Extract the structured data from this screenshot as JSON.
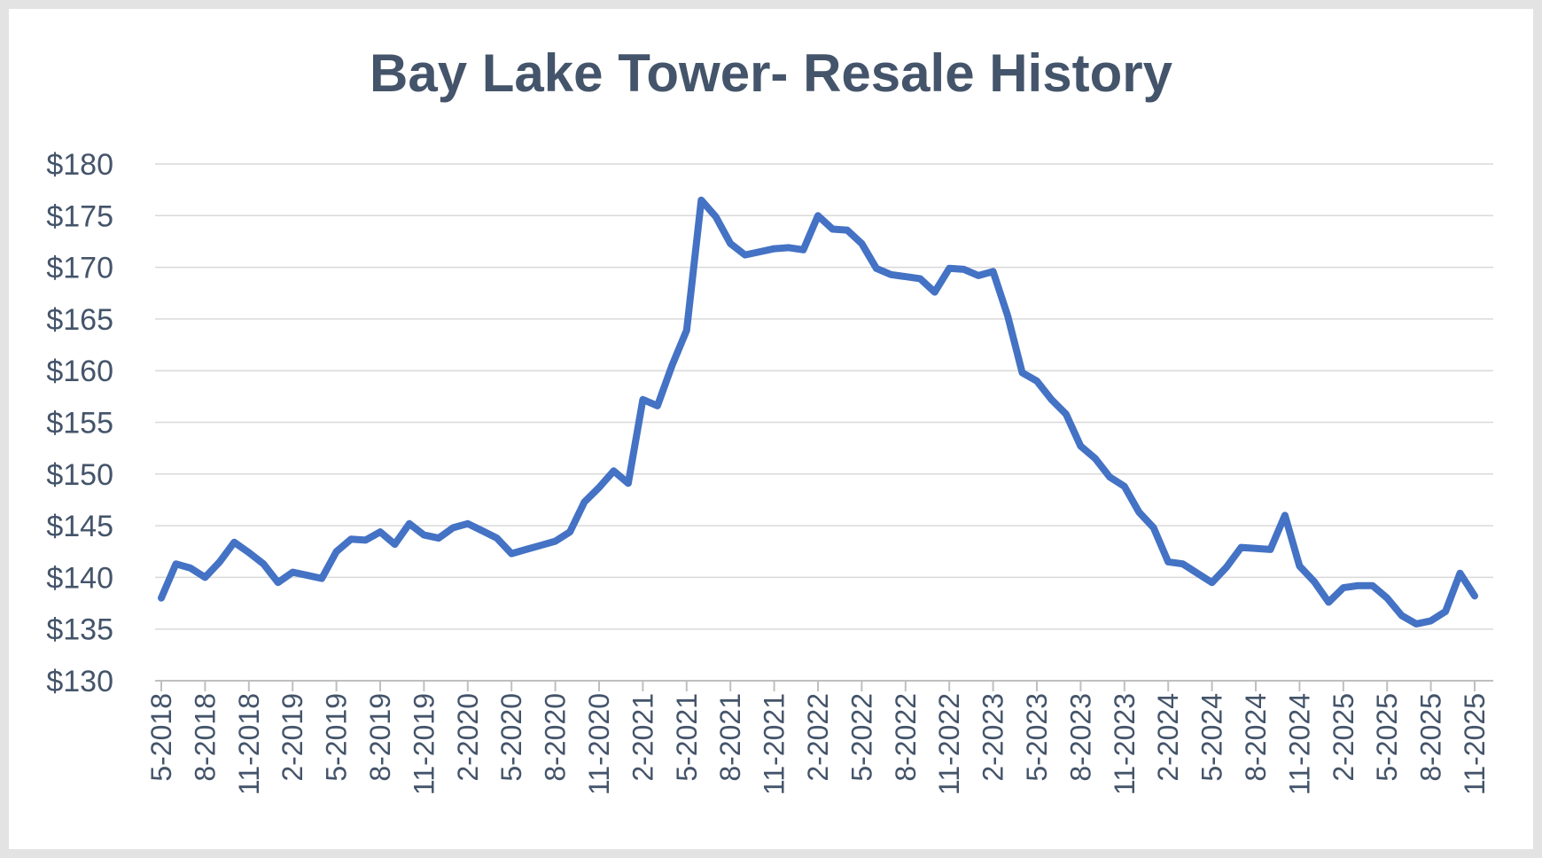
{
  "chart_data": {
    "type": "line",
    "title": "Bay Lake Tower- Resale History",
    "xlabel": "",
    "ylabel": "",
    "ylim": [
      130,
      180
    ],
    "y_ticks": [
      130,
      135,
      140,
      145,
      150,
      155,
      160,
      165,
      170,
      175,
      180
    ],
    "y_tick_prefix": "$",
    "x_tick_labels": [
      "5-2018",
      "8-2018",
      "11-2018",
      "2-2019",
      "5-2019",
      "8-2019",
      "11-2019",
      "2-2020",
      "5-2020",
      "8-2020",
      "11-2020",
      "2-2021",
      "5-2021",
      "8-2021",
      "11-2021",
      "2-2022",
      "5-2022",
      "8-2022",
      "11-2022",
      "2-2023",
      "5-2023",
      "8-2023",
      "11-2023",
      "2-2024",
      "5-2024",
      "8-2024",
      "11-2024",
      "2-2025",
      "5-2025",
      "8-2025",
      "11-2025"
    ],
    "x_tick_every": 3,
    "grid": true,
    "legend": "none",
    "line_color": "#4472c4",
    "series": [
      {
        "values": [
          138.0,
          141.3,
          140.9,
          140.0,
          141.5,
          143.4,
          142.4,
          141.3,
          139.5,
          140.5,
          140.2,
          139.9,
          142.5,
          143.7,
          143.6,
          144.4,
          143.2,
          145.2,
          144.1,
          143.8,
          144.8,
          145.2,
          144.5,
          143.8,
          142.3,
          142.7,
          143.1,
          143.5,
          144.4,
          147.3,
          148.7,
          150.3,
          149.1,
          157.2,
          156.6,
          160.5,
          163.9,
          176.5,
          174.9,
          172.3,
          171.2,
          171.5,
          171.8,
          171.9,
          171.7,
          175.0,
          173.7,
          173.6,
          172.3,
          169.9,
          169.3,
          169.1,
          168.9,
          167.6,
          169.9,
          169.8,
          169.2,
          169.6,
          165.3,
          159.8,
          159.0,
          157.2,
          155.8,
          152.7,
          151.5,
          149.7,
          148.8,
          146.3,
          144.8,
          141.5,
          141.3,
          140.4,
          139.5,
          141.0,
          142.9,
          142.8,
          142.7,
          146.0,
          141.1,
          139.6,
          137.6,
          139.0,
          139.2,
          139.2,
          138.0,
          136.3,
          135.5,
          135.8,
          136.7,
          140.4,
          138.2
        ]
      }
    ]
  }
}
